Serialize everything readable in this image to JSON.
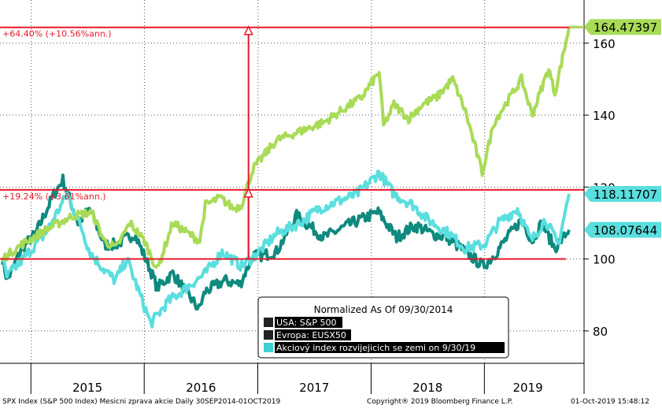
{
  "chart_data": {
    "type": "line",
    "title": "",
    "xlabel": "",
    "ylabel": "",
    "x_range": [
      "2014-09-30",
      "2019-09-30"
    ],
    "x_tick_labels": [
      "2015",
      "2016",
      "2017",
      "2018",
      "2019"
    ],
    "ylim": [
      71,
      172
    ],
    "y_ticks": [
      80,
      100,
      120,
      140,
      160
    ],
    "grid": true,
    "legend": {
      "title": "Normalized As Of 09/30/2014",
      "placement": "bottom-center",
      "entries": [
        {
          "name": "USA: S&P 500",
          "color": "#222222"
        },
        {
          "name": "Evropa: EUSX50",
          "color": "#222222"
        },
        {
          "name": "Akciový index rozvijejicich se zemi on 9/30/19",
          "color": "#40d0d0"
        }
      ]
    },
    "series": [
      {
        "name": "USA: S&P 500",
        "color": "#a9db57",
        "last_value": "164.47397",
        "x": [
          "2014-09-30",
          "2014-12-01",
          "2015-02-15",
          "2015-05-15",
          "2015-07-15",
          "2015-08-25",
          "2015-10-01",
          "2015-11-15",
          "2016-01-01",
          "2016-02-11",
          "2016-04-01",
          "2016-06-27",
          "2016-07-15",
          "2016-09-01",
          "2016-10-15",
          "2016-11-08",
          "2016-12-15",
          "2017-01-31",
          "2017-03-01",
          "2017-05-01",
          "2017-08-01",
          "2017-12-01",
          "2018-01-26",
          "2018-02-09",
          "2018-03-15",
          "2018-05-01",
          "2018-06-15",
          "2018-07-31",
          "2018-09-20",
          "2018-10-31",
          "2018-12-24",
          "2019-01-31",
          "2019-04-30",
          "2019-06-03",
          "2019-07-26",
          "2019-08-15",
          "2019-09-30"
        ],
        "y": [
          100,
          104,
          108,
          112,
          113,
          105,
          103,
          110,
          105,
          97,
          110,
          105,
          115,
          117,
          114,
          115,
          125,
          130,
          133,
          135,
          138,
          145,
          152,
          137,
          143,
          139,
          143,
          145,
          150,
          141,
          124,
          138,
          150,
          140,
          153,
          146,
          164.5
        ]
      },
      {
        "name": "Evropa: EUSX50",
        "color": "#0e8a7e",
        "last_value": "108.07644",
        "x": [
          "2014-09-30",
          "2014-10-16",
          "2014-12-01",
          "2015-01-15",
          "2015-03-15",
          "2015-04-13",
          "2015-06-01",
          "2015-07-08",
          "2015-08-25",
          "2015-10-01",
          "2015-11-30",
          "2016-01-15",
          "2016-02-11",
          "2016-04-01",
          "2016-06-24",
          "2016-07-15",
          "2016-09-15",
          "2016-11-04",
          "2016-12-15",
          "2017-01-15",
          "2017-03-01",
          "2017-05-05",
          "2017-08-01",
          "2017-11-01",
          "2018-01-23",
          "2018-03-23",
          "2018-05-15",
          "2018-06-01",
          "2018-07-15",
          "2018-09-01",
          "2018-10-31",
          "2018-12-27",
          "2019-01-31",
          "2019-03-15",
          "2019-04-30",
          "2019-06-03",
          "2019-07-04",
          "2019-08-15",
          "2019-09-30"
        ],
        "y": [
          100,
          94,
          103,
          107,
          118,
          122,
          110,
          114,
          104,
          104,
          107,
          98,
          92,
          96,
          86,
          91,
          94,
          93,
          101,
          101,
          102,
          112,
          106,
          110,
          113,
          106,
          109,
          109,
          107,
          106,
          102,
          98,
          101,
          106,
          111,
          105,
          110,
          103,
          108.1
        ]
      },
      {
        "name": "Akciový index rozvijejicich se zemi on 9/30/19",
        "color": "#5adede",
        "last_value": "118.11707",
        "x": [
          "2014-09-30",
          "2014-10-15",
          "2014-12-15",
          "2015-02-15",
          "2015-04-27",
          "2015-06-15",
          "2015-07-08",
          "2015-08-24",
          "2015-09-29",
          "2015-11-05",
          "2016-01-21",
          "2016-03-15",
          "2016-05-15",
          "2016-07-15",
          "2016-09-07",
          "2016-11-09",
          "2016-12-23",
          "2017-03-01",
          "2017-05-15",
          "2017-07-15",
          "2017-09-15",
          "2017-11-15",
          "2018-01-26",
          "2018-03-15",
          "2018-05-15",
          "2018-07-01",
          "2018-09-10",
          "2018-10-29",
          "2018-12-31",
          "2019-02-15",
          "2019-04-17",
          "2019-05-31",
          "2019-07-15",
          "2019-08-26",
          "2019-09-30"
        ],
        "y": [
          100,
          95,
          101,
          107,
          118,
          108,
          102,
          97,
          94,
          100,
          82,
          88,
          92,
          96,
          102,
          98,
          101,
          107,
          110,
          114,
          116,
          118,
          124,
          118,
          115,
          111,
          107,
          103,
          104,
          110,
          114,
          105,
          111,
          104,
          118.1
        ]
      }
    ],
    "annotations": [
      {
        "text": "+64.40% (+10.56%ann.)",
        "level": 164.4
      },
      {
        "text": "+19.24% (+3.61%ann.)",
        "level": 119.24
      }
    ],
    "reference_level": 100
  },
  "colors": {
    "annotation_line": "#e8192c",
    "grid": "#555555"
  },
  "footer": {
    "left": "SPX Index (S&P 500 Index) Mesicni zprava akcie  Daily 30SEP2014-01OCT2019",
    "center": "Copyright® 2019 Bloomberg Finance L.P.",
    "right": "01-Oct-2019 15:48:12"
  }
}
